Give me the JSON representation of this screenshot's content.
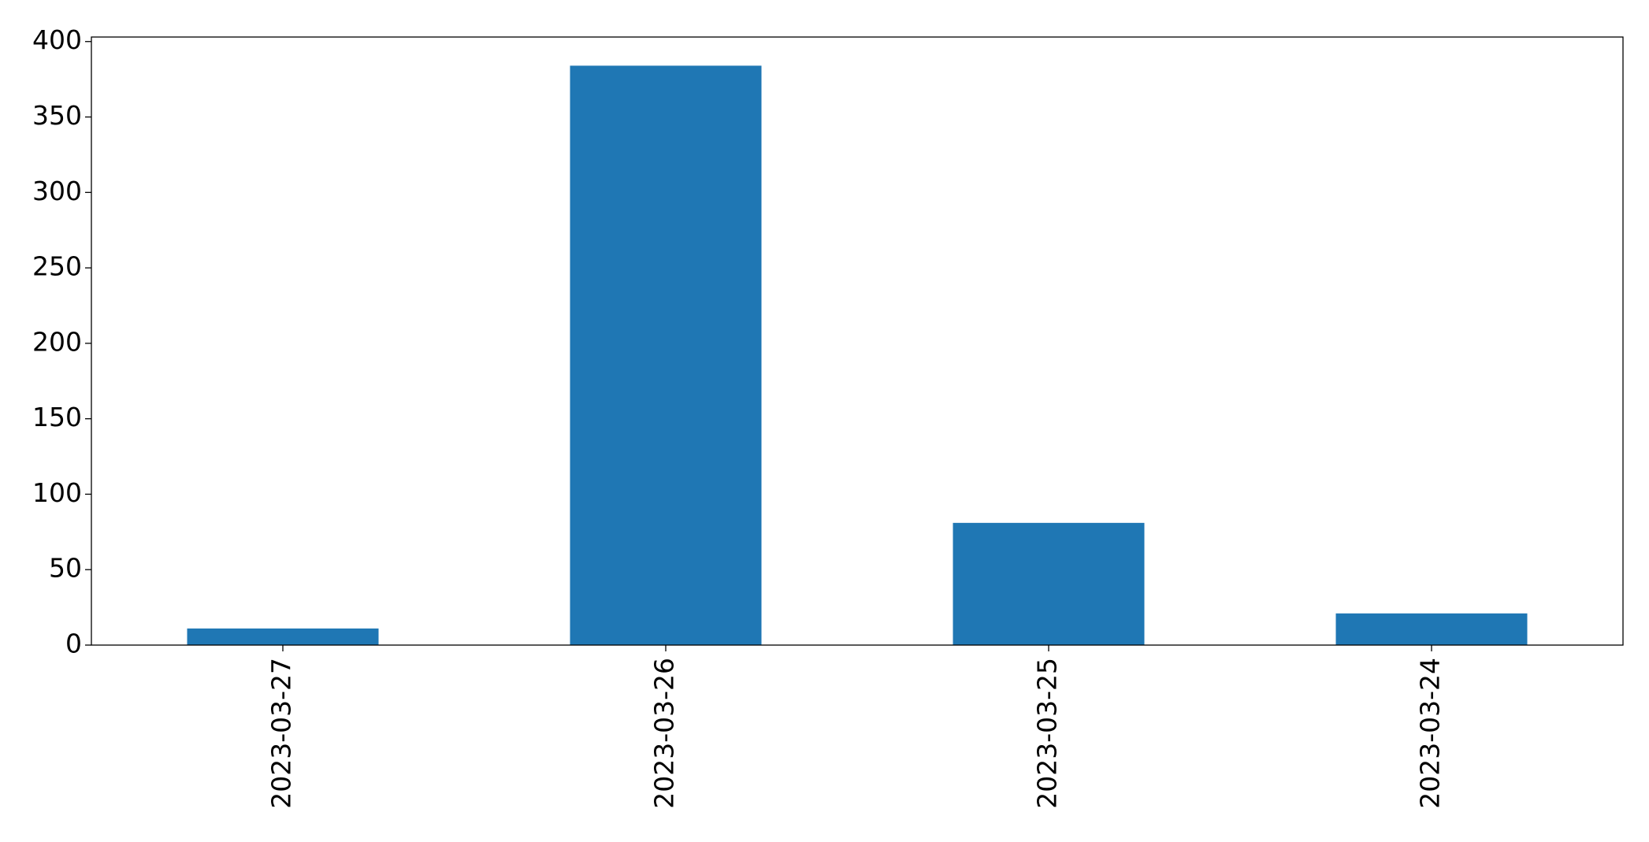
{
  "chart_data": {
    "type": "bar",
    "title": "",
    "xlabel": "",
    "ylabel": "",
    "categories": [
      "2023-03-27",
      "2023-03-26",
      "2023-03-25",
      "2023-03-24"
    ],
    "values": [
      11,
      384,
      81,
      21
    ],
    "ylim": [
      0,
      403
    ],
    "yticks": [
      0,
      50,
      100,
      150,
      200,
      250,
      300,
      350,
      400
    ],
    "ytick_labels": [
      "0",
      "50",
      "100",
      "150",
      "200",
      "250",
      "300",
      "350",
      "400"
    ],
    "xtick_rotation": "vertical",
    "bar_color": "#1f77b4",
    "grid": false,
    "legend": "none"
  }
}
